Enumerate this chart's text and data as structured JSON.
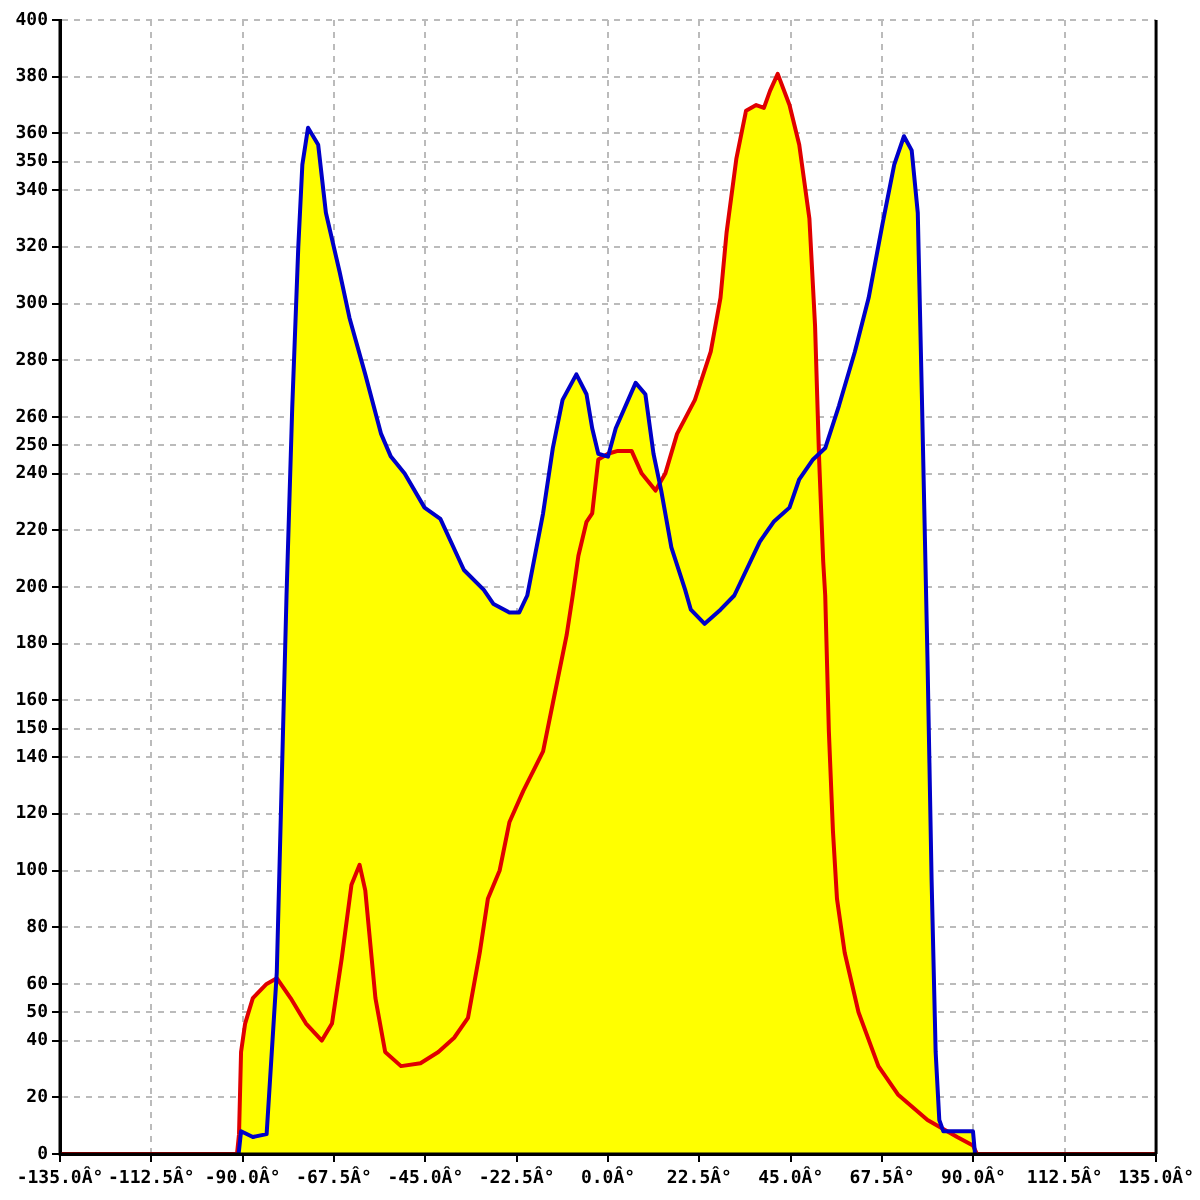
{
  "chart_data": {
    "type": "line",
    "xlim": [
      -135,
      135
    ],
    "xticks": [
      {
        "value": -135,
        "label": "-135.0Â°"
      },
      {
        "value": -112.5,
        "label": "-112.5Â°"
      },
      {
        "value": -90,
        "label": "-90.0Â°"
      },
      {
        "value": -67.5,
        "label": "-67.5Â°"
      },
      {
        "value": -45,
        "label": "-45.0Â°"
      },
      {
        "value": -22.5,
        "label": "-22.5Â°"
      },
      {
        "value": 0,
        "label": "0.0Â°"
      },
      {
        "value": 22.5,
        "label": "22.5Â°"
      },
      {
        "value": 45,
        "label": "45.0Â°"
      },
      {
        "value": 67.5,
        "label": "67.5Â°"
      },
      {
        "value": 90,
        "label": "90.0Â°"
      },
      {
        "value": 112.5,
        "label": "112.5Â°"
      },
      {
        "value": 135,
        "label": "135.0Â°"
      }
    ],
    "ylim": [
      0,
      400
    ],
    "yticks": [
      0,
      20,
      40,
      50,
      60,
      80,
      100,
      120,
      140,
      150,
      160,
      180,
      200,
      220,
      240,
      250,
      260,
      280,
      300,
      320,
      340,
      350,
      360,
      380,
      400
    ],
    "grid": true,
    "legend": false,
    "line_style": "solid",
    "marker": "none",
    "series": [
      {
        "color": "#0000c8",
        "x": [
          -91,
          -90.4,
          -87.5,
          -84.1,
          -81.6,
          -79.2,
          -77.8,
          -76.3,
          -75.3,
          -73.9,
          -71.4,
          -69.5,
          -66.1,
          -63.7,
          -59.8,
          -55.9,
          -53.5,
          -50.1,
          -45.2,
          -41.3,
          -35.5,
          -30.6,
          -28.2,
          -24.3,
          -21.9,
          -19.9,
          -16,
          -13.6,
          -11.2,
          -7.8,
          -5.3,
          -3.9,
          -2.4,
          0,
          1.9,
          6.8,
          9.2,
          11.2,
          13.1,
          15.6,
          19,
          20.4,
          23.8,
          27.7,
          31.1,
          37.4,
          40.8,
          44.7,
          47.1,
          50.5,
          53.5,
          56.9,
          60.8,
          64.2,
          67.6,
          70.5,
          72.9,
          74.8,
          76.3,
          77.3,
          78.7,
          79.7,
          80.7,
          81.6,
          82.6,
          89.9,
          90.4
        ],
        "values": [
          0,
          8,
          6,
          7,
          64,
          197,
          263,
          320,
          349,
          362,
          356,
          332,
          311,
          295,
          275,
          254,
          246,
          240,
          228,
          224,
          206,
          199,
          194,
          191,
          191,
          197,
          226,
          249,
          266,
          275,
          268,
          256,
          247,
          246,
          256,
          272,
          268,
          247,
          234,
          214,
          199,
          192,
          187,
          192,
          197,
          216,
          223,
          228,
          238,
          245,
          249,
          264,
          283,
          302,
          328,
          349,
          359,
          354,
          332,
          268,
          174,
          97,
          36,
          12,
          8,
          8,
          0
        ]
      },
      {
        "color": "#e00000",
        "x": [
          -135,
          -91.4,
          -90.9,
          -90.4,
          -89.4,
          -87.5,
          -84.1,
          -81.6,
          -78.2,
          -74.4,
          -70.5,
          -68,
          -65.6,
          -63.2,
          -61.2,
          -59.8,
          -57.3,
          -54.9,
          -51,
          -46.2,
          -41.8,
          -37.9,
          -34.5,
          -31.6,
          -29.6,
          -26.7,
          -24.3,
          -20.9,
          -16,
          -13.6,
          -10.2,
          -8.7,
          -7.3,
          -5.3,
          -3.9,
          -2.4,
          0,
          2.4,
          5.8,
          8.3,
          11.7,
          14.1,
          17,
          21.4,
          25.3,
          27.7,
          29.2,
          31.6,
          34,
          36.5,
          38.4,
          39.9,
          41.8,
          44.7,
          47.1,
          49.6,
          51,
          52,
          53,
          53.5,
          54.4,
          55.4,
          56.4,
          58.3,
          61.7,
          66.6,
          71.4,
          78.7,
          86,
          89.9,
          90.9,
          135
        ],
        "values": [
          0,
          0,
          7,
          36,
          46,
          55,
          60,
          62,
          55,
          46,
          40,
          46,
          69,
          95,
          102,
          93,
          55,
          36,
          31,
          32,
          36,
          41,
          48,
          71,
          90,
          100,
          117,
          128,
          142,
          159,
          183,
          197,
          211,
          223,
          226,
          245,
          247,
          248,
          248,
          240,
          234,
          240,
          254,
          266,
          283,
          302,
          325,
          351,
          368,
          370,
          369,
          375,
          381,
          370,
          356,
          330,
          292,
          245,
          209,
          197,
          149,
          114,
          90,
          71,
          50,
          31,
          21,
          12,
          6,
          3,
          0,
          0
        ]
      }
    ]
  }
}
